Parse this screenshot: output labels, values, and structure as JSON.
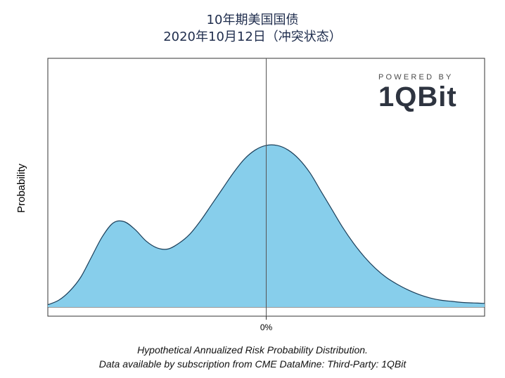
{
  "header": {
    "title_line1": "10年期美国国债",
    "title_line2": "2020年10月12日（冲突状态）"
  },
  "logo": {
    "powered_by": "POWERED BY",
    "brand": "1QBit"
  },
  "caption": {
    "line1": "Hypothetical Annualized Risk Probability Distribution.",
    "line2": "Data available by subscription from CME DataMine: Third-Party: 1QBit"
  },
  "colors": {
    "fill": "#87ceeb",
    "stroke": "#1c3f5a",
    "axis": "#333333"
  },
  "chart_data": {
    "type": "area",
    "title": "10年期美国国债 2020年10月12日（冲突状态）",
    "xlabel": "",
    "ylabel": "Probability",
    "x_tick_labels": [
      "0%"
    ],
    "x_tick_positions": [
      0
    ],
    "xlim": [
      -1,
      1
    ],
    "ylim": [
      0,
      1
    ],
    "grid": false,
    "legend": "none",
    "series": [
      {
        "x": [
          -1.0,
          -0.95,
          -0.9,
          -0.85,
          -0.8,
          -0.75,
          -0.7,
          -0.65,
          -0.6,
          -0.55,
          -0.5,
          -0.45,
          -0.4,
          -0.35,
          -0.3,
          -0.25,
          -0.2,
          -0.15,
          -0.1,
          -0.05,
          0.0,
          0.05,
          0.1,
          0.15,
          0.2,
          0.25,
          0.3,
          0.35,
          0.4,
          0.45,
          0.5,
          0.55,
          0.6,
          0.65,
          0.7,
          0.75,
          0.8,
          0.85,
          0.9,
          0.95,
          1.0
        ],
        "y": [
          0.01,
          0.03,
          0.07,
          0.13,
          0.22,
          0.31,
          0.37,
          0.375,
          0.34,
          0.29,
          0.26,
          0.255,
          0.28,
          0.32,
          0.38,
          0.45,
          0.52,
          0.59,
          0.65,
          0.69,
          0.71,
          0.71,
          0.69,
          0.65,
          0.59,
          0.51,
          0.43,
          0.35,
          0.28,
          0.22,
          0.17,
          0.13,
          0.1,
          0.075,
          0.055,
          0.04,
          0.03,
          0.025,
          0.02,
          0.018,
          0.016
        ]
      }
    ]
  }
}
